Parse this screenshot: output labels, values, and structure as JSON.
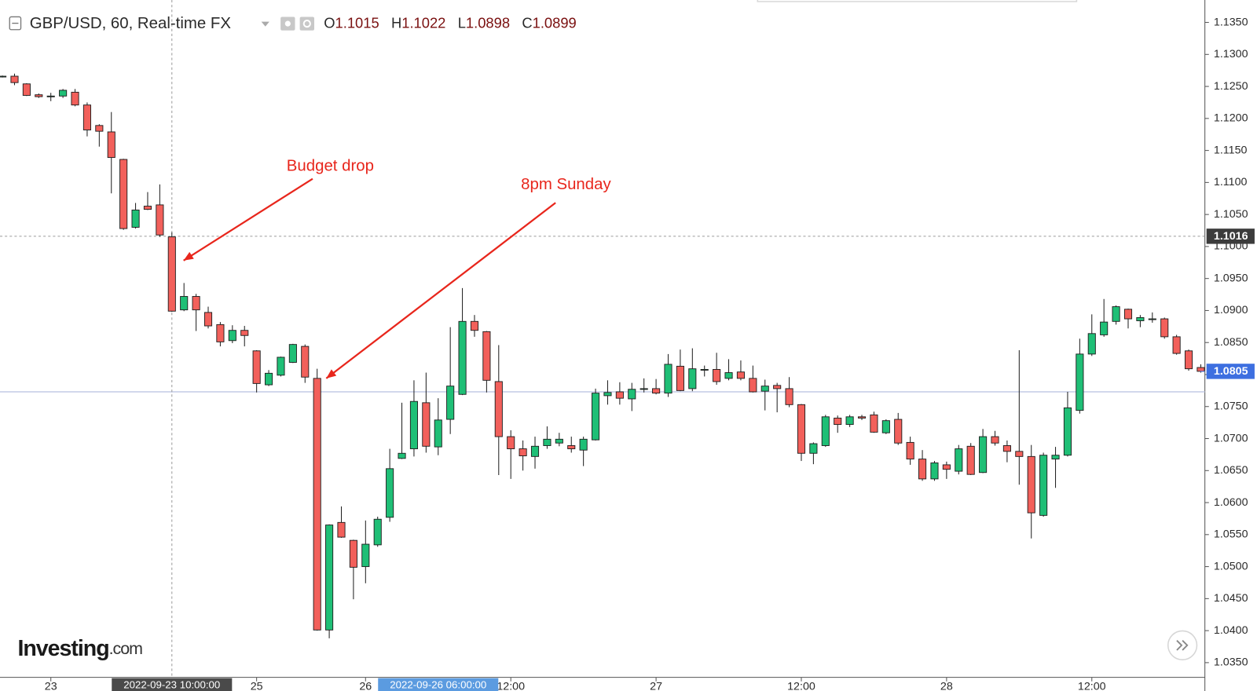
{
  "chart_data": {
    "type": "candlestick",
    "title": "GBP/USD, 60, Real-time FX",
    "ohlc_labels": [
      "O",
      "H",
      "L",
      "C"
    ],
    "hover_index": 14,
    "up_color": "#1fbf76",
    "down_color": "#f2605b",
    "annotation_color": "#e8261c",
    "annotations": [
      "Budget drop",
      "8pm Sunday"
    ],
    "logo": [
      "Investing",
      ".com"
    ],
    "open": [
      1.1265,
      1.1266,
      1.1254,
      1.1237,
      1.1234,
      1.1235,
      1.1241,
      1.1221,
      1.1189,
      1.1179,
      1.1136,
      1.103,
      1.1063,
      1.1065,
      1.1015,
      1.0901,
      1.0922,
      1.0897,
      1.0878,
      1.0853,
      1.0869,
      1.0837,
      1.0784,
      1.0799,
      1.0819,
      1.0844,
      1.0794,
      1.0401,
      1.0569,
      1.0541,
      1.05,
      1.0534,
      1.0577,
      1.0669,
      1.0684,
      1.0756,
      1.0687,
      1.073,
      1.0769,
      1.0883,
      1.0867,
      1.0789,
      1.0703,
      1.0684,
      1.0672,
      1.0689,
      1.0693,
      1.0689,
      1.0682,
      1.0698,
      1.0767,
      1.0773,
      1.0762,
      1.0777,
      1.0778,
      1.0771,
      1.0813,
      1.0778,
      1.0807,
      1.0808,
      1.0794,
      1.0804,
      1.0794,
      1.0774,
      1.0783,
      1.0778,
      1.0753,
      1.0677,
      1.0689,
      1.0732,
      1.0722,
      1.0734,
      1.0737,
      1.0709,
      1.073,
      1.0694,
      1.0668,
      1.0637,
      1.0659,
      1.0649,
      1.0688,
      1.0647,
      1.0703,
      1.0689,
      1.068,
      1.0672,
      1.058,
      1.0668,
      1.0674,
      1.0744,
      1.0832,
      1.0862,
      1.0883,
      1.0902,
      1.0884,
      1.0887,
      1.0887,
      1.0859,
      1.0837,
      1.0811
    ],
    "high": [
      1.1267,
      1.127,
      1.1255,
      1.1239,
      1.124,
      1.1246,
      1.1246,
      1.1225,
      1.1191,
      1.121,
      1.1137,
      1.1068,
      1.1085,
      1.1097,
      1.1022,
      1.0943,
      1.0926,
      1.0906,
      1.0882,
      1.0877,
      1.0876,
      1.0838,
      1.0807,
      1.0828,
      1.0848,
      1.0847,
      1.0809,
      1.0566,
      1.0594,
      1.0542,
      1.0572,
      1.0578,
      1.0684,
      1.0756,
      1.0791,
      1.0803,
      1.0763,
      1.0874,
      1.0935,
      1.0893,
      1.0868,
      1.0846,
      1.0713,
      1.0697,
      1.0703,
      1.0719,
      1.0709,
      1.0703,
      1.0703,
      1.0778,
      1.0791,
      1.0788,
      1.0787,
      1.0794,
      1.0793,
      1.0832,
      1.0839,
      1.0841,
      1.0814,
      1.0834,
      1.0824,
      1.0822,
      1.0814,
      1.0792,
      1.0787,
      1.0796,
      1.0754,
      1.0694,
      1.0737,
      1.0736,
      1.0737,
      1.0737,
      1.0742,
      1.073,
      1.074,
      1.0703,
      1.0682,
      1.0665,
      1.0664,
      1.069,
      1.0693,
      1.0715,
      1.0712,
      1.0697,
      1.0838,
      1.069,
      1.0678,
      1.0687,
      1.0773,
      1.0856,
      1.0894,
      1.0918,
      1.0908,
      1.0903,
      1.0893,
      1.0897,
      1.0889,
      1.0862,
      1.0839,
      1.0816
    ],
    "low": [
      1.1264,
      1.1252,
      1.1235,
      1.1232,
      1.1227,
      1.1232,
      1.1219,
      1.1172,
      1.1156,
      1.1083,
      1.1026,
      1.1028,
      1.1057,
      1.1015,
      1.0898,
      1.0899,
      1.0868,
      1.0872,
      1.0844,
      1.0849,
      1.0844,
      1.0772,
      1.0782,
      1.0797,
      1.0818,
      1.0787,
      1.04,
      1.0388,
      1.0545,
      1.0449,
      1.0474,
      1.0531,
      1.057,
      1.0668,
      1.0672,
      1.0678,
      1.0674,
      1.0707,
      1.0768,
      1.0859,
      1.0772,
      1.0643,
      1.0637,
      1.065,
      1.0653,
      1.0684,
      1.0688,
      1.0678,
      1.0657,
      1.0697,
      1.0753,
      1.0753,
      1.0743,
      1.0772,
      1.0769,
      1.0765,
      1.0774,
      1.0774,
      1.0797,
      1.0784,
      1.0791,
      1.0791,
      1.0772,
      1.0744,
      1.0741,
      1.0749,
      1.0665,
      1.066,
      1.0687,
      1.0709,
      1.0718,
      1.0729,
      1.0709,
      1.0707,
      1.069,
      1.0659,
      1.0634,
      1.0634,
      1.0637,
      1.0644,
      1.0643,
      1.0646,
      1.0689,
      1.0663,
      1.0628,
      1.0544,
      1.0578,
      1.0623,
      1.0672,
      1.0739,
      1.0829,
      1.0859,
      1.0878,
      1.0872,
      1.0874,
      1.0881,
      1.0856,
      1.0831,
      1.0806,
      1.0803
    ],
    "close": [
      1.1266,
      1.1256,
      1.1236,
      1.1234,
      1.1235,
      1.1244,
      1.1221,
      1.1182,
      1.118,
      1.1139,
      1.1028,
      1.1057,
      1.1058,
      1.1018,
      1.0899,
      1.0922,
      1.0901,
      1.0876,
      1.0851,
      1.0869,
      1.0861,
      1.0786,
      1.0802,
      1.0827,
      1.0847,
      1.0796,
      1.0401,
      1.0565,
      1.0546,
      1.0499,
      1.0535,
      1.0574,
      1.0653,
      1.0677,
      1.0758,
      1.0688,
      1.0729,
      1.0782,
      1.0883,
      1.0869,
      1.0791,
      1.0703,
      1.0684,
      1.0673,
      1.0688,
      1.0699,
      1.0699,
      1.0684,
      1.0699,
      1.0771,
      1.0772,
      1.0763,
      1.0777,
      1.0778,
      1.0771,
      1.0816,
      1.0775,
      1.0809,
      1.0808,
      1.0789,
      1.0803,
      1.0794,
      1.0773,
      1.0782,
      1.0778,
      1.0753,
      1.0677,
      1.0692,
      1.0734,
      1.0722,
      1.0734,
      1.0732,
      1.071,
      1.0728,
      1.0693,
      1.0668,
      1.0637,
      1.0662,
      1.0652,
      1.0684,
      1.0644,
      1.0703,
      1.0693,
      1.068,
      1.0672,
      1.0584,
      1.0674,
      1.0674,
      1.0748,
      1.0832,
      1.0864,
      1.0882,
      1.0906,
      1.0887,
      1.0889,
      1.0887,
      1.0859,
      1.0833,
      1.0809,
      1.0805
    ],
    "xlim": [
      -0.2,
      99.34
    ],
    "xticks": [
      {
        "value": 4,
        "label": "23"
      },
      {
        "value": 21,
        "label": "25"
      },
      {
        "value": 30,
        "label": "26"
      },
      {
        "value": 42,
        "label": "12:00"
      },
      {
        "value": 54,
        "label": "27"
      },
      {
        "value": 66,
        "label": "12:00"
      },
      {
        "value": 78,
        "label": "28"
      },
      {
        "value": 90,
        "label": "12:00"
      }
    ],
    "ylim": [
      1.0327,
      1.1385
    ],
    "yticks": [
      {
        "value": 1.035,
        "label": "1.0350"
      },
      {
        "value": 1.04,
        "label": "1.0400"
      },
      {
        "value": 1.045,
        "label": "1.0450"
      },
      {
        "value": 1.05,
        "label": "1.0500"
      },
      {
        "value": 1.055,
        "label": "1.0550"
      },
      {
        "value": 1.06,
        "label": "1.0600"
      },
      {
        "value": 1.065,
        "label": "1.0650"
      },
      {
        "value": 1.07,
        "label": "1.0700"
      },
      {
        "value": 1.075,
        "label": "1.0750"
      },
      {
        "value": 1.08,
        "label": "1.0800"
      },
      {
        "value": 1.085,
        "label": "1.0850"
      },
      {
        "value": 1.09,
        "label": "1.0900"
      },
      {
        "value": 1.095,
        "label": "1.0950"
      },
      {
        "value": 1.1,
        "label": "1.1000"
      },
      {
        "value": 1.105,
        "label": "1.1050"
      },
      {
        "value": 1.11,
        "label": "1.1100"
      },
      {
        "value": 1.115,
        "label": "1.1150"
      },
      {
        "value": 1.12,
        "label": "1.1200"
      },
      {
        "value": 1.125,
        "label": "1.1250"
      },
      {
        "value": 1.13,
        "label": "1.1300"
      },
      {
        "value": 1.135,
        "label": "1.1350"
      }
    ],
    "crosshair_x": {
      "value": 14,
      "label": "2022-09-23 10:00:00"
    },
    "highlight_x": {
      "value": 36,
      "label": "2022-09-26 06:00:00"
    },
    "crosshair_y": 1.1016,
    "last_price": 1.0805,
    "horizontal_line": 1.0773
  }
}
